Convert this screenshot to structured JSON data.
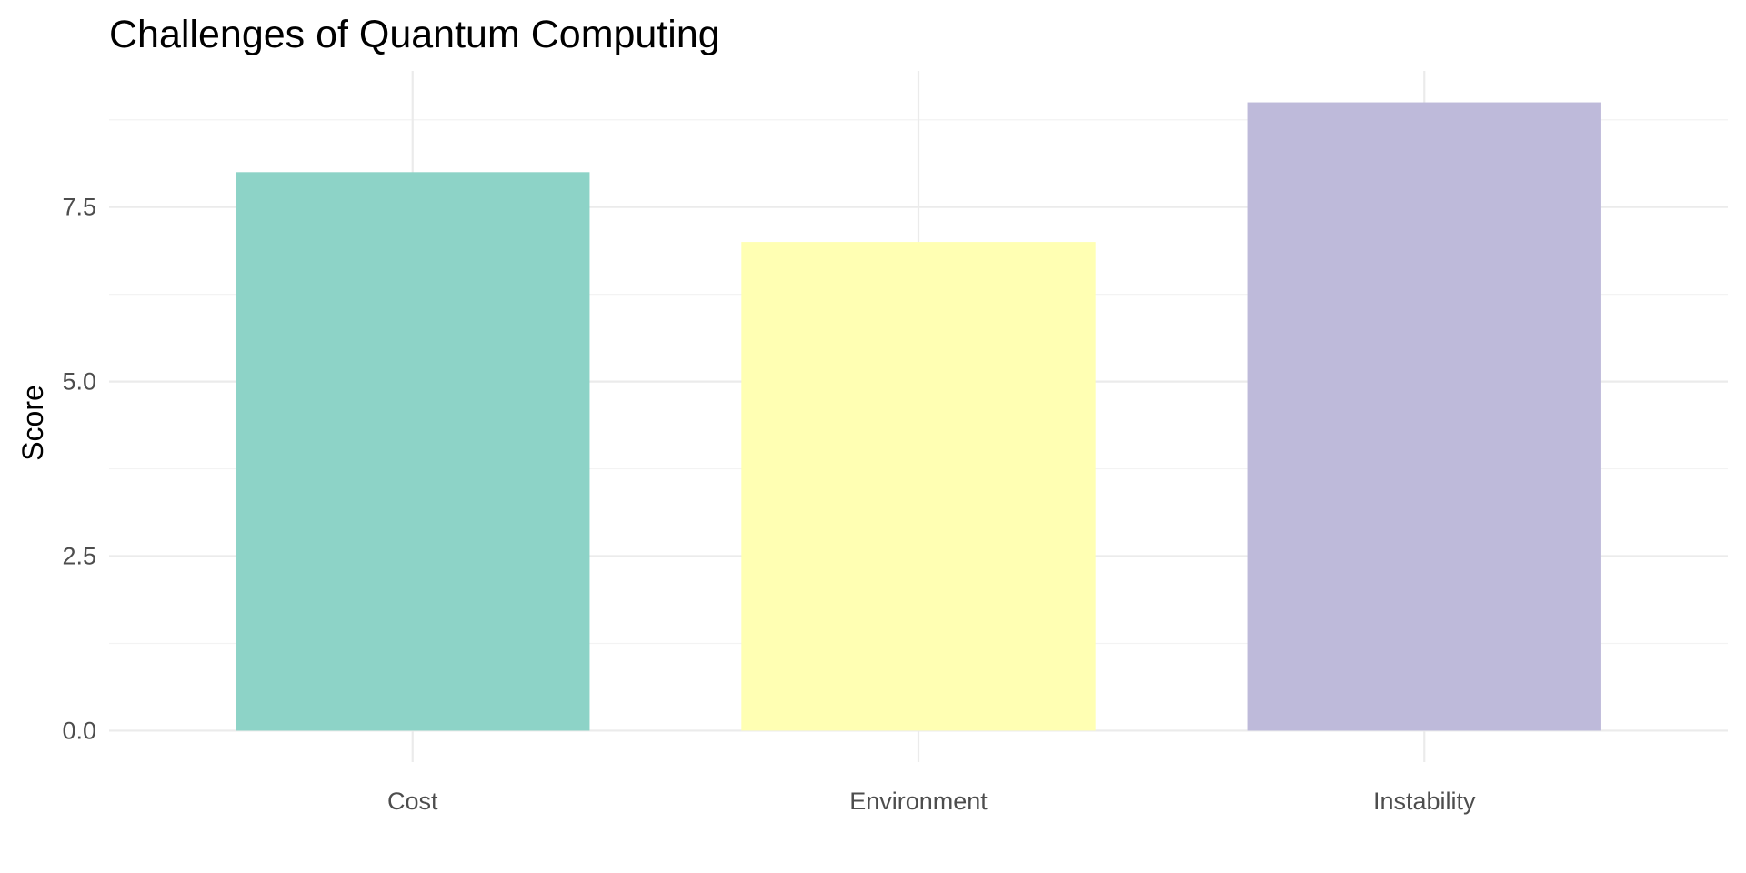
{
  "chart_data": {
    "type": "bar",
    "title": "Challenges of Quantum Computing",
    "xlabel": "",
    "ylabel": "Score",
    "categories": [
      "Cost",
      "Environment",
      "Instability"
    ],
    "values": [
      8,
      7,
      9
    ],
    "colors": [
      "#8dd3c7",
      "#ffffb3",
      "#bebada"
    ],
    "ylim": [
      -0.45,
      9.45
    ],
    "yticks": [
      0,
      2.5,
      5,
      7.5
    ],
    "ytick_labels": [
      "0.0",
      "2.5",
      "5.0",
      "7.5"
    ],
    "grid": true,
    "legend": "none"
  }
}
